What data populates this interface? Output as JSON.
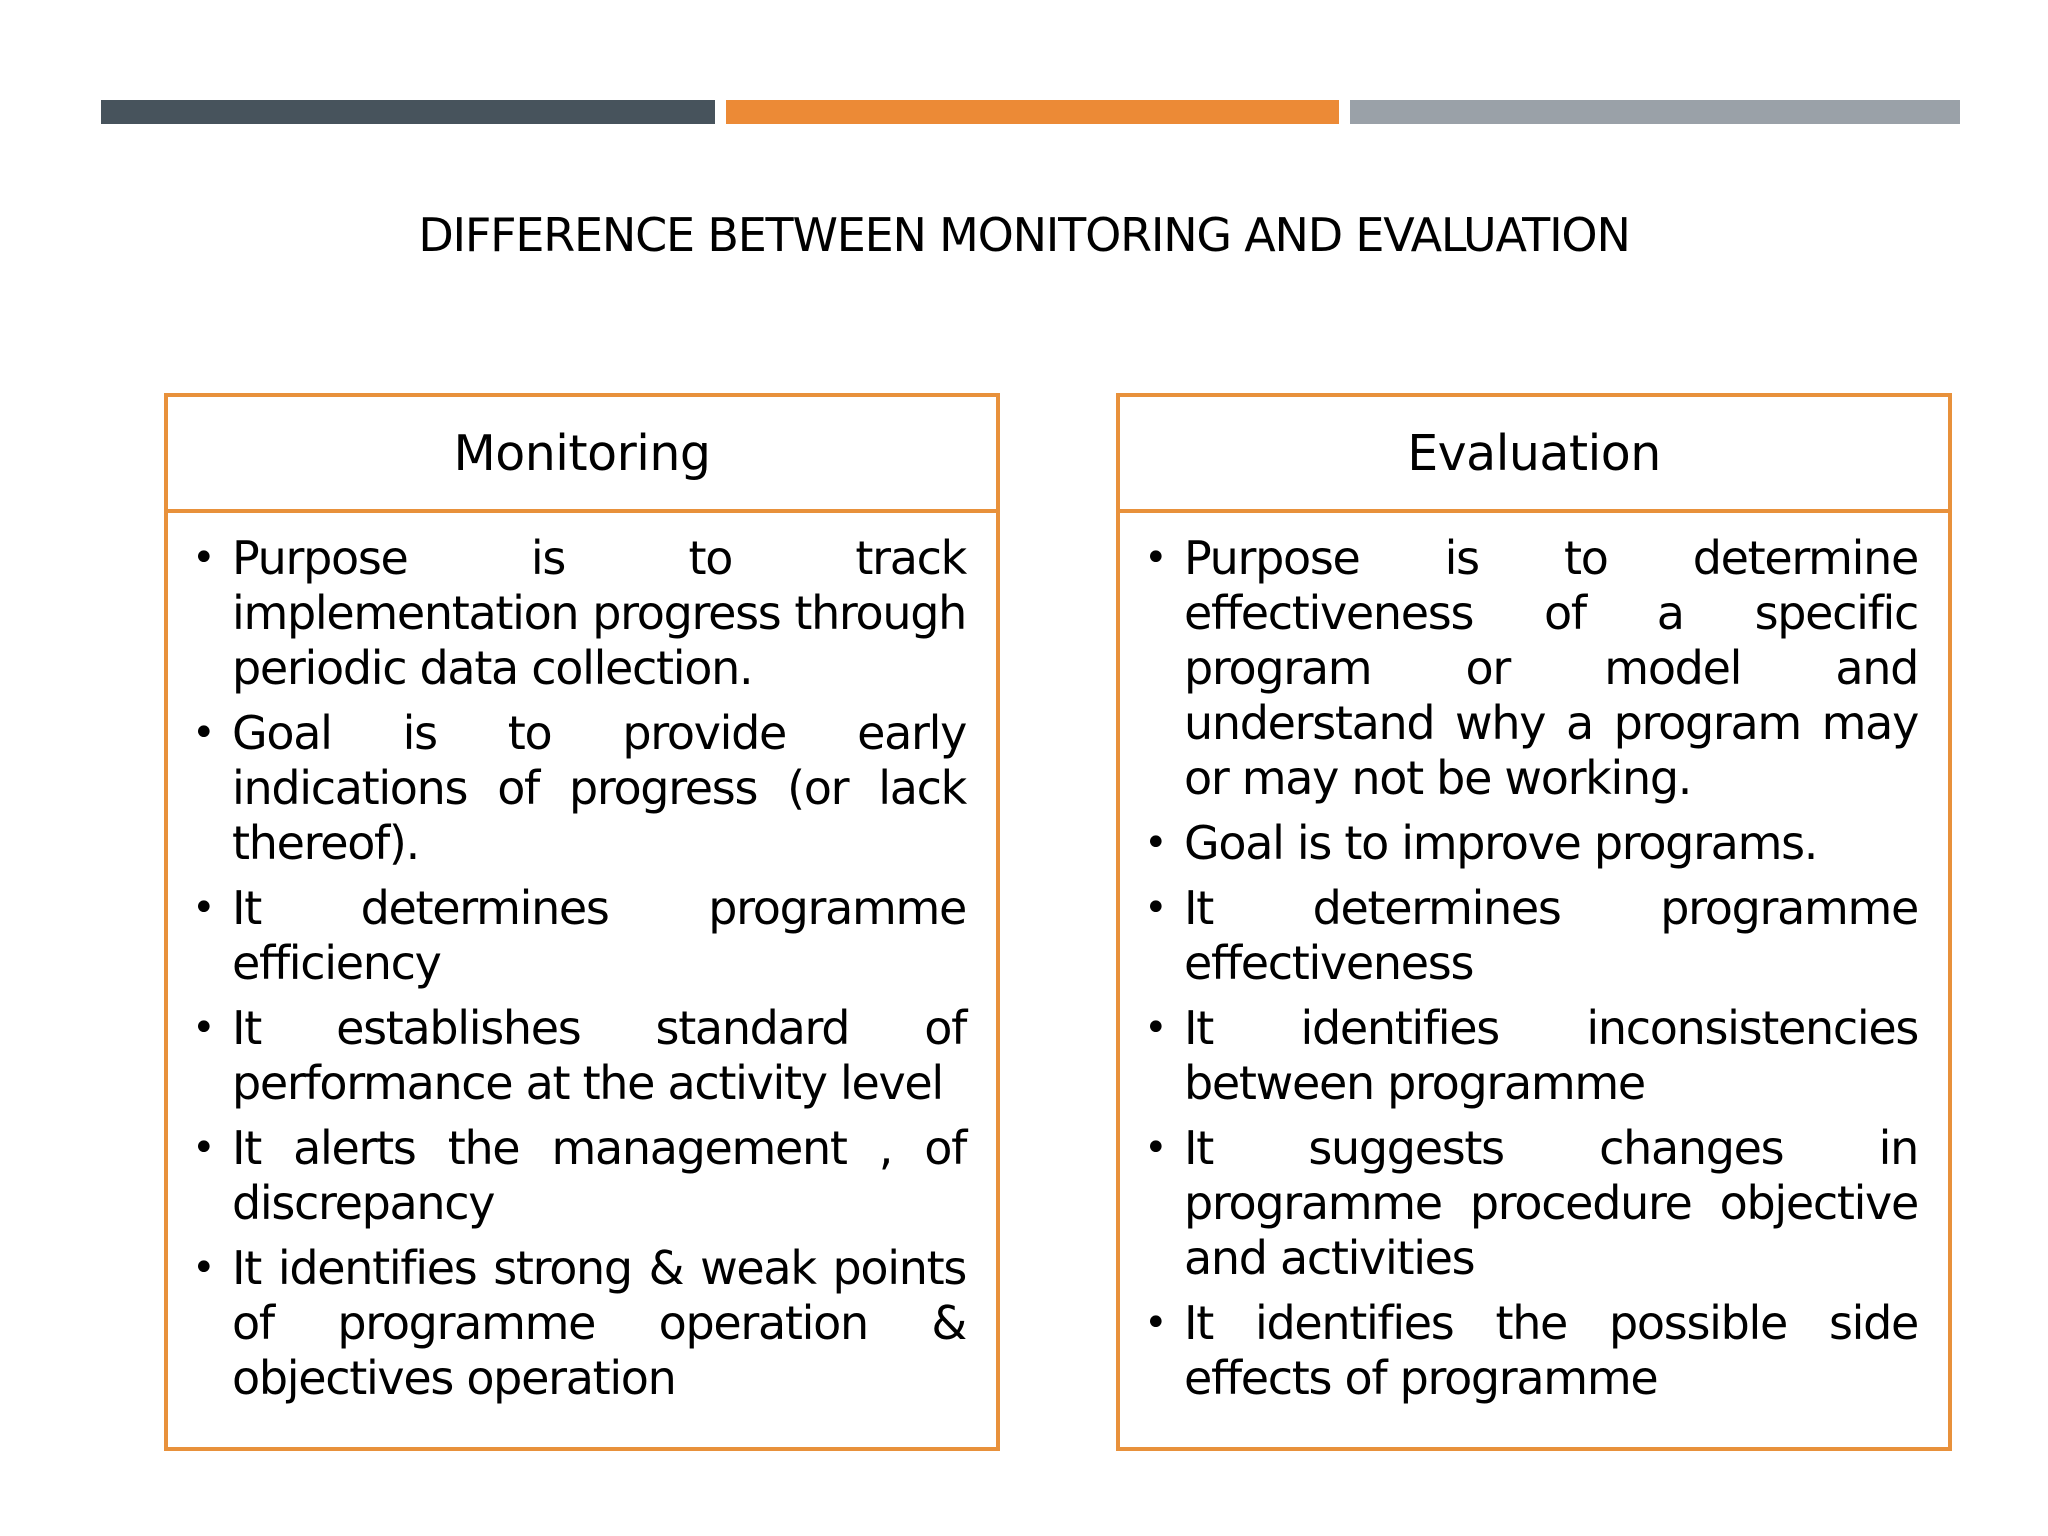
{
  "colors": {
    "bar_dark": "#47535c",
    "bar_orange": "#ec8a36",
    "bar_gray": "#9aa1a8",
    "panel_border": "#e8913b"
  },
  "title": "DIFFERENCE BETWEEN MONITORING AND EVALUATION",
  "bullet_icon": "bullet-dot",
  "bullet_char": "•",
  "monitoring": {
    "heading": "Monitoring",
    "points": [
      "Purpose is to track implementation progress through periodic data collection.",
      "Goal is to provide early indications of progress (or lack thereof).",
      "It determines programme efficiency",
      "It establishes standard of performance at the activity level",
      "It alerts the management , of discrepancy",
      "It identifies strong & weak points of  programme operation & objectives operation"
    ]
  },
  "evaluation": {
    "heading": "Evaluation",
    "points": [
      "Purpose is to determine effectiveness of a specific program or model and understand why a program may or may not be working.",
      "Goal is to improve programs.",
      "It determines programme effectiveness",
      "It identifies inconsistencies between programme",
      "It suggests changes in programme procedure objective and activities",
      "It identifies the possible side effects of programme"
    ]
  }
}
